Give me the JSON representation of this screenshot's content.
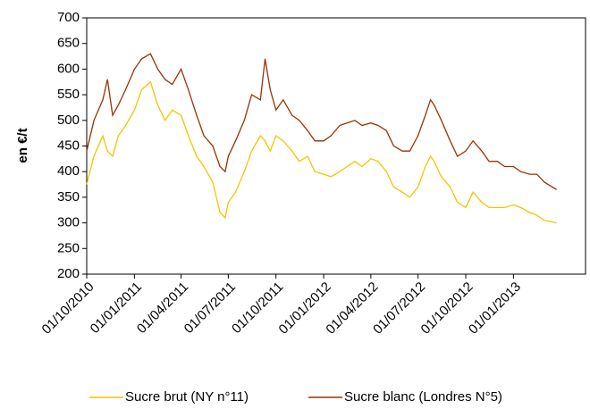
{
  "chart_data": {
    "type": "line",
    "y_label": "en €/t",
    "x": [
      "2010-10-01",
      "2010-10-15",
      "2010-11-01",
      "2010-11-10",
      "2010-11-20",
      "2010-12-01",
      "2010-12-15",
      "2011-01-01",
      "2011-01-15",
      "2011-02-01",
      "2011-02-15",
      "2011-03-01",
      "2011-03-15",
      "2011-04-01",
      "2011-04-15",
      "2011-05-01",
      "2011-05-15",
      "2011-06-01",
      "2011-06-15",
      "2011-06-25",
      "2011-07-01",
      "2011-07-15",
      "2011-08-01",
      "2011-08-15",
      "2011-09-01",
      "2011-09-10",
      "2011-09-20",
      "2011-10-01",
      "2011-10-15",
      "2011-11-01",
      "2011-11-15",
      "2011-12-01",
      "2011-12-15",
      "2012-01-01",
      "2012-01-15",
      "2012-02-01",
      "2012-02-15",
      "2012-03-01",
      "2012-03-15",
      "2012-04-01",
      "2012-04-15",
      "2012-05-01",
      "2012-05-15",
      "2012-06-01",
      "2012-06-15",
      "2012-07-01",
      "2012-07-15",
      "2012-07-25",
      "2012-08-01",
      "2012-08-15",
      "2012-09-01",
      "2012-09-15",
      "2012-10-01",
      "2012-10-15",
      "2012-11-01",
      "2012-11-15",
      "2012-12-01",
      "2012-12-15",
      "2013-01-01",
      "2013-01-15",
      "2013-02-01",
      "2013-02-15",
      "2013-03-01",
      "2013-03-25"
    ],
    "series": [
      {
        "name": "Sucre brut (NY n°11)",
        "color": "#f5c400",
        "values": [
          375,
          430,
          470,
          440,
          430,
          470,
          490,
          520,
          560,
          575,
          530,
          500,
          520,
          510,
          470,
          430,
          410,
          380,
          320,
          310,
          340,
          360,
          400,
          440,
          470,
          460,
          440,
          470,
          460,
          440,
          420,
          430,
          400,
          395,
          390,
          400,
          410,
          420,
          410,
          425,
          420,
          400,
          370,
          360,
          350,
          370,
          410,
          430,
          420,
          390,
          370,
          340,
          330,
          360,
          340,
          330,
          330,
          330,
          335,
          330,
          320,
          315,
          305,
          300
        ]
      },
      {
        "name": "Sucre blanc (Londres N°5)",
        "color": "#993300",
        "values": [
          440,
          500,
          540,
          580,
          510,
          530,
          560,
          600,
          620,
          630,
          600,
          580,
          570,
          600,
          560,
          510,
          470,
          450,
          410,
          400,
          430,
          460,
          500,
          550,
          540,
          620,
          560,
          520,
          540,
          510,
          500,
          480,
          460,
          460,
          470,
          490,
          495,
          500,
          490,
          495,
          490,
          480,
          450,
          440,
          440,
          470,
          510,
          540,
          530,
          500,
          460,
          430,
          440,
          460,
          440,
          420,
          420,
          410,
          410,
          400,
          395,
          395,
          380,
          365
        ]
      }
    ],
    "xlim": [
      "2010-10-01",
      "2013-05-20"
    ],
    "xticks": [
      {
        "value": "2010-10-01",
        "label": "01/10/2010"
      },
      {
        "value": "2011-01-01",
        "label": "01/01/2011"
      },
      {
        "value": "2011-04-01",
        "label": "01/04/2011"
      },
      {
        "value": "2011-07-01",
        "label": "01/07/2011"
      },
      {
        "value": "2011-10-01",
        "label": "01/10/2011"
      },
      {
        "value": "2012-01-01",
        "label": "01/01/2012"
      },
      {
        "value": "2012-04-01",
        "label": "01/04/2012"
      },
      {
        "value": "2012-07-01",
        "label": "01/07/2012"
      },
      {
        "value": "2012-10-01",
        "label": "01/10/2012"
      },
      {
        "value": "2013-01-01",
        "label": "01/01/2013"
      }
    ],
    "ylim": [
      200,
      700
    ],
    "yticks": [
      200,
      250,
      300,
      350,
      400,
      450,
      500,
      550,
      600,
      650,
      700
    ],
    "legend": "bottom"
  }
}
